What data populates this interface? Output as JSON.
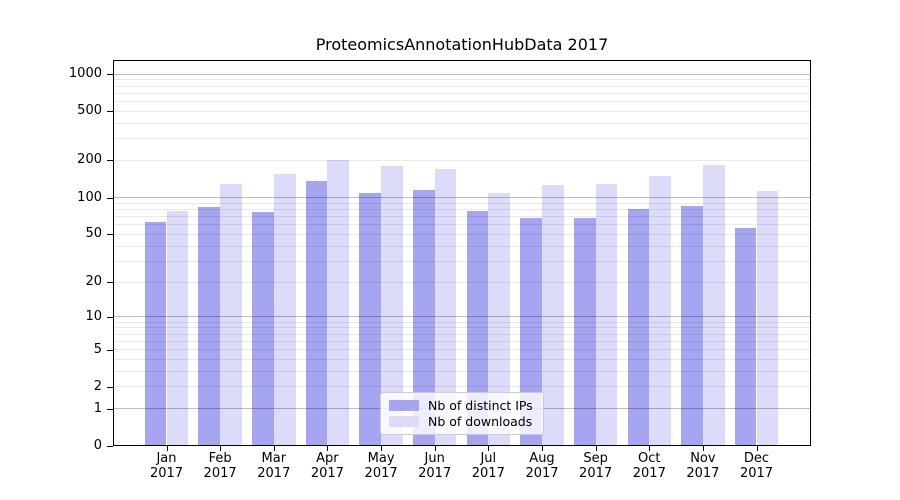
{
  "chart_data": {
    "type": "bar",
    "title": "ProteomicsAnnotationHubData 2017",
    "categories": [
      "Jan",
      "Feb",
      "Mar",
      "Apr",
      "May",
      "Jun",
      "Jul",
      "Aug",
      "Sep",
      "Oct",
      "Nov",
      "Dec"
    ],
    "year_label": "2017",
    "series": [
      {
        "name": "Nb of distinct IPs",
        "color": "#a5a5f2",
        "values": [
          63,
          83,
          76,
          136,
          108,
          115,
          78,
          68,
          68,
          80,
          85,
          56
        ]
      },
      {
        "name": "Nb of downloads",
        "color": "#dcdcfa",
        "values": [
          78,
          130,
          155,
          200,
          180,
          172,
          109,
          127,
          129,
          150,
          183,
          113
        ]
      }
    ],
    "y_axis": {
      "scale": "log1p",
      "range": [
        0,
        1000
      ],
      "tick_values": [
        0,
        1,
        2,
        5,
        10,
        20,
        50,
        100,
        200,
        500,
        1000
      ],
      "tick_labels": [
        "0",
        "1",
        "2",
        "5",
        "10",
        "20",
        "50",
        "100",
        "200",
        "500",
        "1000"
      ],
      "major_grid_values": [
        1,
        10,
        100,
        1000
      ],
      "minor_grid_values": [
        2,
        3,
        4,
        5,
        6,
        7,
        8,
        9,
        20,
        30,
        40,
        50,
        60,
        70,
        80,
        90,
        200,
        300,
        400,
        500,
        600,
        700,
        800,
        900
      ]
    },
    "legend": {
      "position": "bottom-center",
      "entries": [
        "Nb of distinct IPs",
        "Nb of downloads"
      ]
    },
    "colors": {
      "axis": "#000000",
      "background": "#ffffff"
    },
    "grid": true
  }
}
